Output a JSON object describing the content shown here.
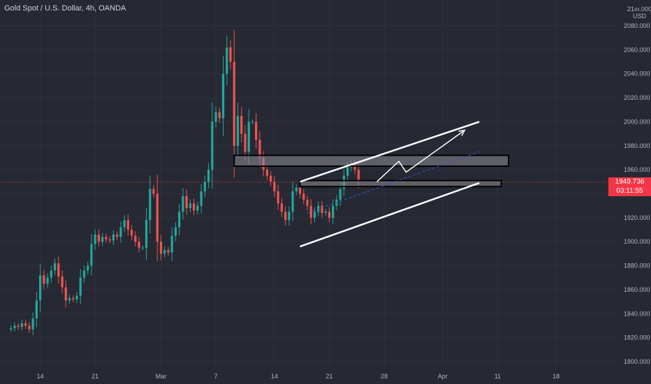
{
  "header": {
    "title": "Gold Spot / U.S. Dollar, 4h, OANDA"
  },
  "price_axis": {
    "currency_top": "21ııı.000",
    "currency": "USD"
  },
  "last_price": {
    "value": "1949.736",
    "countdown": "03:11:55",
    "color": "#f23645"
  },
  "colors": {
    "background": "#262933",
    "up": "#26a69a",
    "down": "#ef5350",
    "grid": "#2e3240",
    "text": "#b2b5be",
    "drawing": "#ffffff"
  },
  "chart_data": {
    "type": "candlestick",
    "title": "Gold Spot / U.S. Dollar, 4h, OANDA",
    "ylim": [
      1795,
      2110
    ],
    "y_ticks": [
      "2080.000",
      "2060.000",
      "2040.000",
      "2020.000",
      "2000.000",
      "1980.000",
      "1960.000",
      "1940.000",
      "1920.000",
      "1900.000",
      "1880.000",
      "1860.000",
      "1840.000",
      "1820.000",
      "1800.000"
    ],
    "y_tick_values": [
      2080,
      2060,
      2040,
      2020,
      2000,
      1980,
      1960,
      1940,
      1920,
      1900,
      1880,
      1860,
      1840,
      1820,
      1800
    ],
    "x_ticks": [
      "14",
      "21",
      "Mar",
      "7",
      "14",
      "21",
      "28",
      "Apr",
      "11",
      "18"
    ],
    "x_tick_index": [
      8,
      23,
      41,
      56,
      72,
      87,
      102,
      118,
      133,
      149
    ],
    "x_range": [
      -3,
      165
    ],
    "last_price": 1949.736,
    "closes": [
      1828,
      1830,
      1829,
      1832,
      1830,
      1827,
      1836,
      1851,
      1872,
      1865,
      1870,
      1876,
      1882,
      1871,
      1862,
      1851,
      1853,
      1852,
      1855,
      1870,
      1876,
      1880,
      1898,
      1906,
      1900,
      1904,
      1902,
      1901,
      1906,
      1904,
      1912,
      1918,
      1910,
      1905,
      1900,
      1895,
      1895,
      1918,
      1944,
      1940,
      1900,
      1890,
      1893,
      1891,
      1905,
      1912,
      1925,
      1938,
      1928,
      1932,
      1926,
      1930,
      1942,
      1950,
      1960,
      2000,
      2008,
      2003,
      2040,
      2062,
      2050,
      1980,
      2005,
      1990,
      1975,
      2000,
      2000,
      1985,
      1970,
      1960,
      1955,
      1950,
      1942,
      1932,
      1925,
      1918,
      1925,
      1942,
      1945,
      1940,
      1935,
      1930,
      1920,
      1925,
      1930,
      1924,
      1925,
      1920,
      1930,
      1935,
      1944,
      1955,
      1962,
      1965,
      1960,
      1950
    ],
    "zones": [
      {
        "name": "upper-zone",
        "from_index": 61,
        "to_index": 136,
        "top": 1972,
        "bottom": 1963
      },
      {
        "name": "lower-zone",
        "from_index": 79,
        "to_index": 134,
        "top": 1951,
        "bottom": 1946
      }
    ],
    "channel_upper": {
      "start": [
        79,
        1950
      ],
      "end": [
        128,
        2000
      ]
    },
    "channel_lower": {
      "start": [
        79,
        1896
      ],
      "end": [
        128,
        1949
      ]
    },
    "projection_path": [
      [
        100,
        1950
      ],
      [
        106,
        1967
      ],
      [
        108,
        1958
      ],
      [
        124,
        1993
      ]
    ],
    "trend_dashed": {
      "start": [
        81,
        1924
      ],
      "end": [
        128,
        1975
      ]
    }
  }
}
